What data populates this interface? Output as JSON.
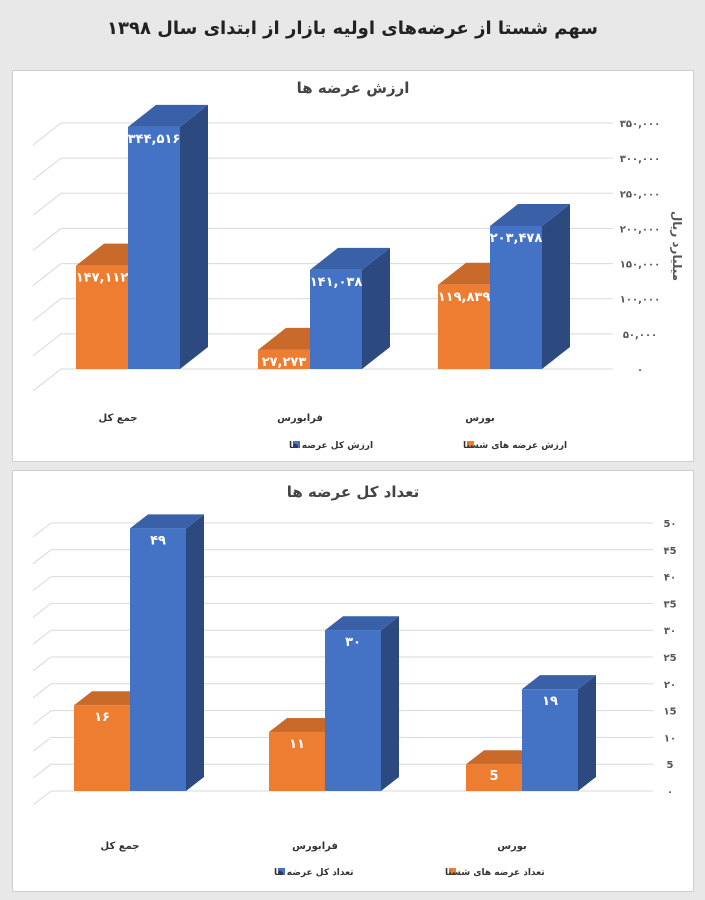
{
  "page": {
    "title": "سهم شستا از عرضه‌های اولیه بازار از ابتدای سال ۱۳۹۸"
  },
  "colors": {
    "orange": "#ed7d31",
    "blue": "#4472c4"
  },
  "chart_data": [
    {
      "type": "bar",
      "title": "ارزش عرضه ها",
      "ylabel": "میلیارد ریال",
      "ylim": [
        0,
        350000
      ],
      "categories": [
        "جمع کل",
        "فرابورس",
        "بورس"
      ],
      "series": [
        {
          "name": "ارزش عرضه های شستا",
          "values": [
            147112,
            27273,
            119839
          ],
          "labels": [
            "۱۴۷,۱۱۲",
            "۲۷,۲۷۳",
            "۱۱۹,۸۳۹"
          ],
          "color": "#ed7d31"
        },
        {
          "name": "ارزش کل عرضه ها",
          "values": [
            344516,
            141038,
            203478
          ],
          "labels": [
            "۳۴۴,۵۱۶",
            "۱۴۱,۰۳۸",
            "۲۰۳,۴۷۸"
          ],
          "color": "#4472c4"
        }
      ],
      "yticks": [
        {
          "value": 0,
          "label": "۰"
        },
        {
          "value": 50000,
          "label": "۵۰,۰۰۰"
        },
        {
          "value": 100000,
          "label": "۱۰۰,۰۰۰"
        },
        {
          "value": 150000,
          "label": "۱۵۰,۰۰۰"
        },
        {
          "value": 200000,
          "label": "۲۰۰,۰۰۰"
        },
        {
          "value": 250000,
          "label": "۲۵۰,۰۰۰"
        },
        {
          "value": 300000,
          "label": "۳۰۰,۰۰۰"
        },
        {
          "value": 350000,
          "label": "۳۵۰,۰۰۰"
        }
      ],
      "legend": [
        "ارزش عرضه های شستا",
        "ارزش کل عرضه ها"
      ],
      "legend_position": "bottom",
      "grid": true
    },
    {
      "type": "bar",
      "title": "تعداد کل عرضه ها",
      "ylabel": "",
      "ylim": [
        0,
        50
      ],
      "categories": [
        "جمع کل",
        "فرابورس",
        "بورس"
      ],
      "series": [
        {
          "name": "تعداد عرضه های شستا",
          "values": [
            16,
            11,
            5
          ],
          "labels": [
            "۱۶",
            "۱۱",
            "5"
          ],
          "color": "#ed7d31"
        },
        {
          "name": "تعداد کل عرضه ها",
          "values": [
            49,
            30,
            19
          ],
          "labels": [
            "۴۹",
            "۳۰",
            "۱۹"
          ],
          "color": "#4472c4"
        }
      ],
      "yticks": [
        {
          "value": 0,
          "label": "۰"
        },
        {
          "value": 5,
          "label": "5"
        },
        {
          "value": 10,
          "label": "۱۰"
        },
        {
          "value": 15,
          "label": "۱5"
        },
        {
          "value": 20,
          "label": "۲۰"
        },
        {
          "value": 25,
          "label": "۲5"
        },
        {
          "value": 30,
          "label": "۳۰"
        },
        {
          "value": 35,
          "label": "۳5"
        },
        {
          "value": 40,
          "label": "۴۰"
        },
        {
          "value": 45,
          "label": "۴5"
        },
        {
          "value": 50,
          "label": "5۰"
        }
      ],
      "legend": [
        "تعداد عرضه های شستا",
        "تعداد کل عرضه ها"
      ],
      "legend_position": "bottom",
      "grid": true
    }
  ]
}
